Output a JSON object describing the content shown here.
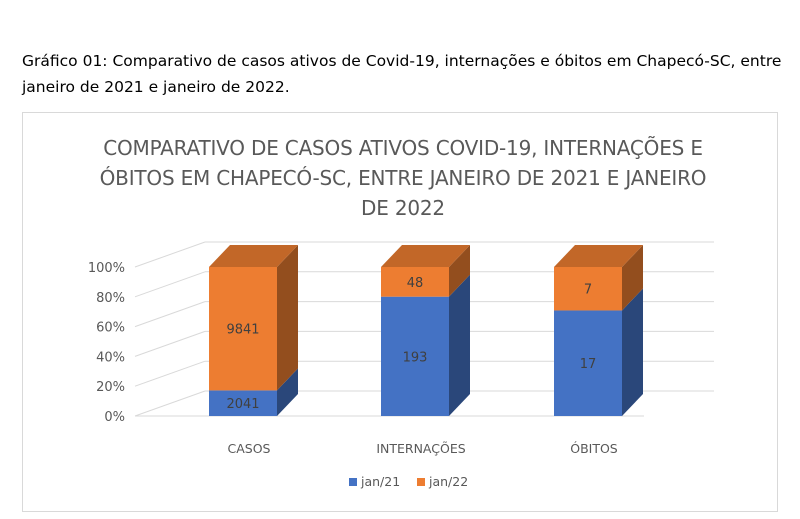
{
  "caption": "Gráfico 01: Comparativo de casos ativos de Covid-19, internações e óbitos em Chapecó-SC, entre janeiro de 2021 e janeiro de 2022.",
  "chart_data": {
    "type": "bar",
    "stacked": "percent",
    "title": "COMPARATIVO DE CASOS ATIVOS COVID-19, INTERNAÇÕES E ÓBITOS EM CHAPECÓ-SC, ENTRE JANEIRO DE 2021 E JANEIRO DE 2022",
    "categories": [
      "CASOS",
      "INTERNAÇÕES",
      "ÓBITOS"
    ],
    "series": [
      {
        "name": "jan/21",
        "values": [
          2041,
          193,
          17
        ],
        "color": "#4472c4"
      },
      {
        "name": "jan/22",
        "values": [
          9841,
          48,
          7
        ],
        "color": "#ed7d31"
      }
    ],
    "y_ticks": [
      "0%",
      "20%",
      "40%",
      "60%",
      "80%",
      "100%"
    ],
    "ylim": [
      0,
      100
    ],
    "grid": true,
    "legend": "bottom",
    "style": "3d-column"
  }
}
